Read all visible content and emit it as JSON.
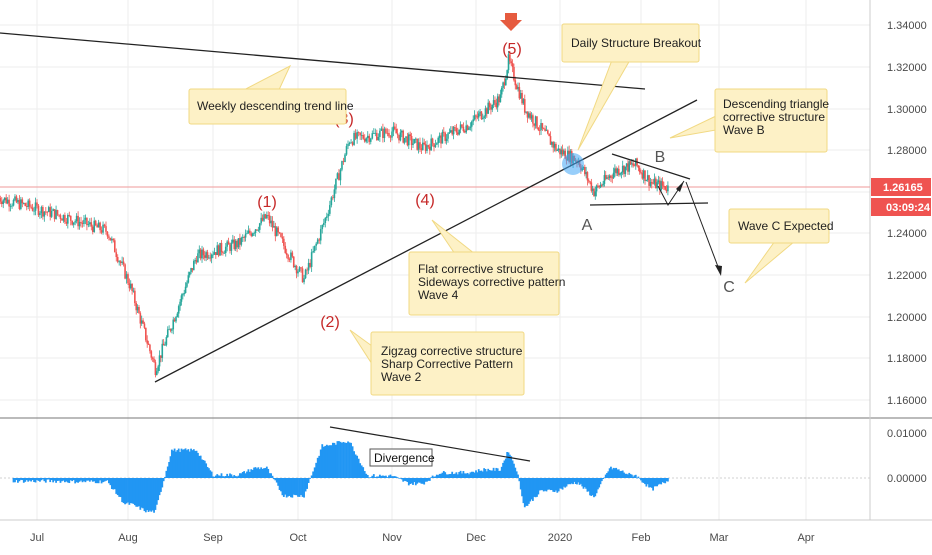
{
  "chart_data": {
    "type": "line",
    "main_pane": {
      "ylim": [
        1.15,
        1.35
      ],
      "y_ticks": [
        "1.34000",
        "1.32000",
        "1.30000",
        "1.28000",
        "1.26000",
        "1.24000",
        "1.22000",
        "1.20000",
        "1.18000",
        "1.16000"
      ],
      "current_price": "1.26165",
      "countdown": "03:09:24",
      "colors": {
        "up": "#26a69a",
        "down": "#ef5350",
        "price_line": "#ef5350",
        "price_box": "#ef5350",
        "annotation": "#c62828"
      },
      "wave_labels": [
        "(1)",
        "(2)",
        "(3)",
        "(4)",
        "(5)",
        "A",
        "B",
        "C"
      ],
      "notes": [
        "Weekly descending trend line",
        "Daily Structure Breakout",
        "Descending triangle|corrective structure|Wave B",
        "Wave C Expected",
        "Flat corrective structure|Sideways corrective pattern|Wave 4",
        "Zigzag corrective structure|Sharp Corrective Pattern|Wave 2"
      ],
      "key_points": [
        {
          "label": "(1)",
          "date": "2019-08-26",
          "value": 1.246
        },
        {
          "label": "(2)",
          "date": "2019-10-03",
          "value": 1.206
        },
        {
          "label": "(3)",
          "date": "2019-10-18",
          "value": 1.289
        },
        {
          "label": "(4)",
          "date": "2019-11-12",
          "value": 1.277
        },
        {
          "label": "(5)",
          "date": "2019-12-13",
          "value": 1.33
        },
        {
          "label": "A",
          "date": "2020-01-13",
          "value": 1.296
        },
        {
          "label": "B",
          "date": "2020-01-30",
          "value": 1.268
        },
        {
          "label": "C",
          "date": "2020-03-02",
          "value": 1.21
        }
      ]
    },
    "oscillator_pane": {
      "ylim": [
        -0.007,
        0.013
      ],
      "y_ticks": [
        "0.01000",
        "0.00000"
      ],
      "annotation": "Divergence",
      "color": "#2196f3"
    },
    "x_ticks": [
      "Jul",
      "Aug",
      "Sep",
      "Oct",
      "Nov",
      "Dec",
      "2020",
      "Feb",
      "Mar",
      "Apr"
    ],
    "grid": true
  }
}
